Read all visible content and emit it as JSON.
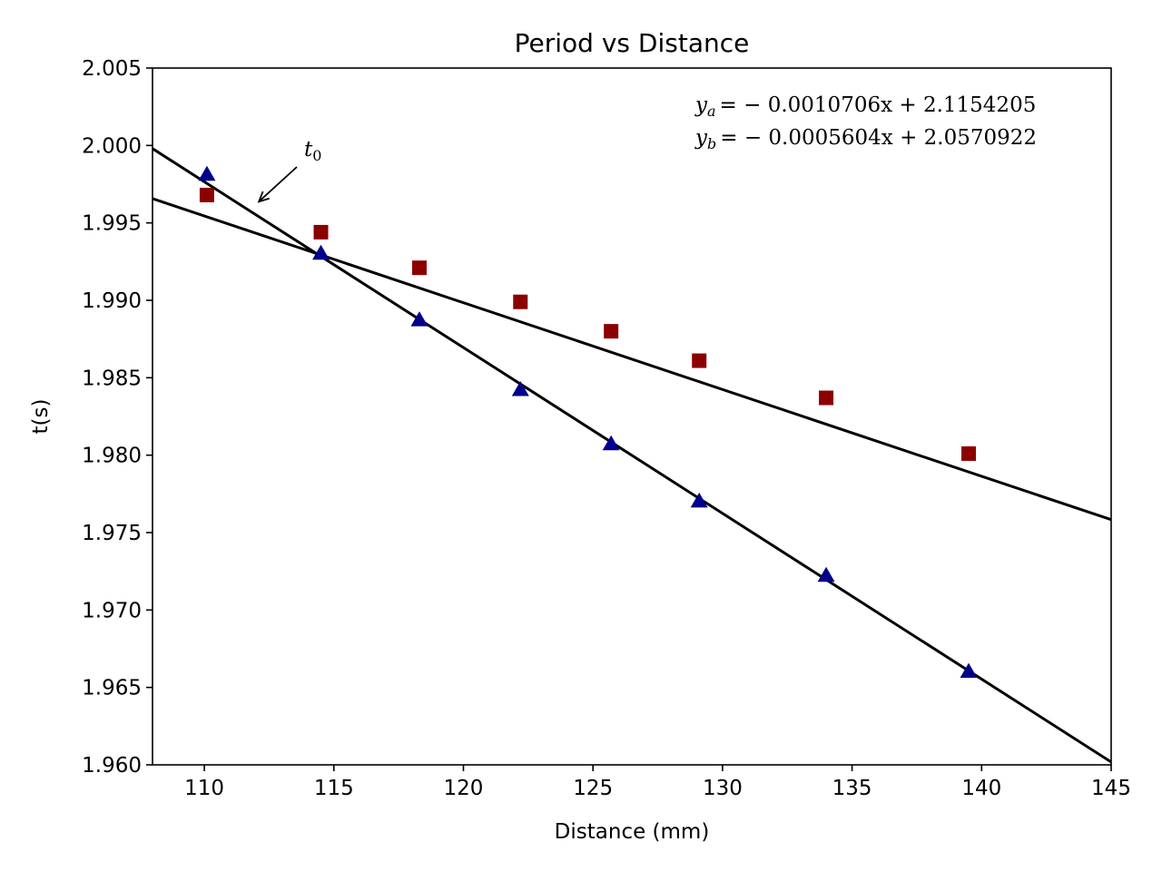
{
  "chart_data": {
    "type": "scatter",
    "title": "Period vs Distance",
    "xlabel": "Distance (mm)",
    "ylabel": "t(s)",
    "xlim": [
      108,
      145
    ],
    "ylim": [
      1.96,
      2.005
    ],
    "xticks": [
      110,
      115,
      120,
      125,
      130,
      135,
      140,
      145
    ],
    "yticks": [
      1.96,
      1.965,
      1.97,
      1.975,
      1.98,
      1.985,
      1.99,
      1.995,
      2.0,
      2.005
    ],
    "xtick_labels": [
      "110",
      "115",
      "120",
      "125",
      "130",
      "135",
      "140",
      "145"
    ],
    "ytick_labels": [
      "1.960",
      "1.965",
      "1.970",
      "1.975",
      "1.980",
      "1.985",
      "1.990",
      "1.995",
      "2.000",
      "2.005"
    ],
    "grid": false,
    "series": [
      {
        "marker": "triangle",
        "color": "#00008b",
        "x": [
          110.1,
          114.5,
          118.3,
          122.2,
          125.7,
          129.1,
          134.0,
          139.5
        ],
        "y": [
          1.9981,
          1.993,
          1.9887,
          1.9842,
          1.9807,
          1.977,
          1.9722,
          1.966
        ]
      },
      {
        "marker": "square",
        "color": "#8b0000",
        "x": [
          110.1,
          114.5,
          118.3,
          122.2,
          125.7,
          129.1,
          134.0,
          139.5
        ],
        "y": [
          1.9968,
          1.9944,
          1.9921,
          1.9899,
          1.988,
          1.9861,
          1.9837,
          1.9801
        ]
      }
    ],
    "fit_lines": [
      {
        "slope": -0.0010706,
        "intercept": 2.1154205,
        "color": "#000000"
      },
      {
        "slope": -0.0005604,
        "intercept": 2.0570922,
        "color": "#000000"
      }
    ],
    "equations": {
      "a": {
        "sub": "a",
        "rhs": "= − 0.0010706x + 2.1154205"
      },
      "b": {
        "sub": "b",
        "rhs": "= − 0.0005604x + 2.0570922"
      }
    },
    "annotation": {
      "text": "t",
      "sub": "0",
      "point_x": 112.0,
      "point_y": 1.9962
    }
  }
}
